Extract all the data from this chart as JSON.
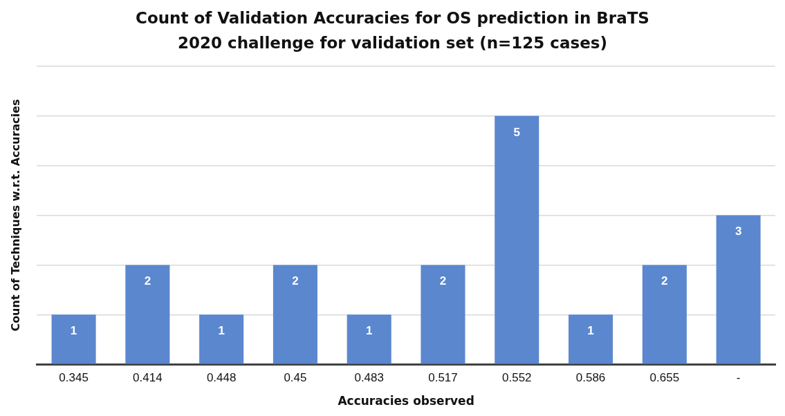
{
  "chart_data": {
    "type": "bar",
    "title": "Count of Validation Accuracies for OS prediction in BraTS 2020 challenge for validation set (n=125 cases)",
    "xlabel": "Accuracies observed",
    "ylabel": "Count of Techniques w.r.t. Accuracies",
    "categories": [
      "0.345",
      "0.414",
      "0.448",
      "0.45",
      "0.483",
      "0.517",
      "0.552",
      "0.586",
      "0.655",
      "-"
    ],
    "values": [
      1,
      2,
      1,
      2,
      1,
      2,
      5,
      1,
      2,
      3
    ],
    "color": "#5b87cf",
    "ylim": [
      0,
      6
    ],
    "yticks": [
      {
        "value": 0,
        "label": null
      },
      {
        "value": 1,
        "label": null
      },
      {
        "value": 2,
        "label": null
      },
      {
        "value": 3,
        "label": null
      },
      {
        "value": 4,
        "label": null
      },
      {
        "value": 5,
        "label": null
      }
    ],
    "grid": "y",
    "tick_labels": "x",
    "data_labels": true
  }
}
